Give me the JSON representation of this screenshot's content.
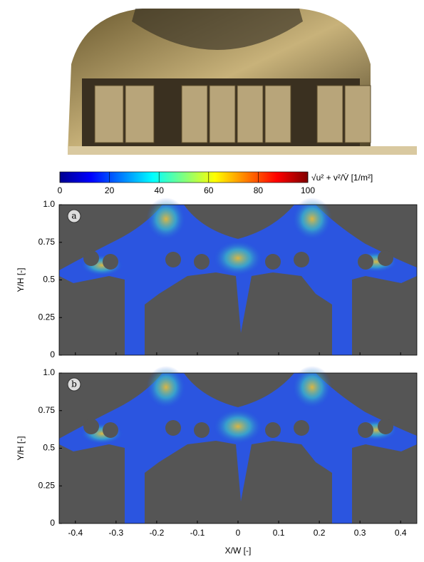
{
  "colorbar": {
    "label": "√u² + v²/V̇ [1/m²]",
    "lim": [
      0,
      100
    ],
    "ticks": [
      0,
      20,
      40,
      60,
      80,
      100
    ]
  },
  "panels": [
    {
      "badge": "a",
      "ylabel": "Y/H [-]",
      "ylim": [
        0,
        1
      ],
      "yticks": [
        0,
        0.25,
        {
          "value": 0.5,
          "label": "0.5"
        },
        0.75,
        {
          "value": 1,
          "label": "1.0"
        }
      ]
    },
    {
      "badge": "b",
      "ylabel": "Y/H [-]",
      "ylim": [
        0,
        1
      ],
      "yticks": [
        0,
        0.25,
        {
          "value": 0.5,
          "label": "0.5"
        },
        0.75,
        {
          "value": 1,
          "label": "1.0"
        }
      ]
    }
  ],
  "xlabel": "X/W [-]",
  "xlim": [
    -0.44,
    0.44
  ],
  "xticks": [
    -0.4,
    -0.3,
    -0.2,
    -0.1,
    0,
    0.1,
    0.2,
    0.3,
    0.4
  ]
}
